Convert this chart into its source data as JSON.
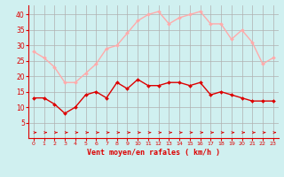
{
  "x": [
    0,
    1,
    2,
    3,
    4,
    5,
    6,
    7,
    8,
    9,
    10,
    11,
    12,
    13,
    14,
    15,
    16,
    17,
    18,
    19,
    20,
    21,
    22,
    23
  ],
  "wind_avg": [
    13,
    13,
    11,
    8,
    10,
    14,
    15,
    13,
    18,
    16,
    19,
    17,
    17,
    18,
    18,
    17,
    18,
    14,
    15,
    14,
    13,
    12,
    12,
    12
  ],
  "wind_gust": [
    28,
    26,
    23,
    18,
    18,
    21,
    24,
    29,
    30,
    34,
    38,
    40,
    41,
    37,
    39,
    40,
    41,
    37,
    37,
    32,
    35,
    31,
    24,
    26
  ],
  "avg_color": "#dd0000",
  "gust_color": "#ffaaaa",
  "bg_color": "#d0f0f0",
  "grid_color": "#b0b0b0",
  "xlabel": "Vent moyen/en rafales ( km/h )",
  "xlabel_color": "#dd0000",
  "yticks": [
    5,
    10,
    15,
    20,
    25,
    30,
    35,
    40
  ],
  "ylim": [
    0,
    43
  ],
  "xlim": [
    -0.5,
    23.5
  ],
  "tick_color": "#dd0000",
  "axis_color": "#dd0000",
  "marker_size": 2.0,
  "line_width": 1.0
}
